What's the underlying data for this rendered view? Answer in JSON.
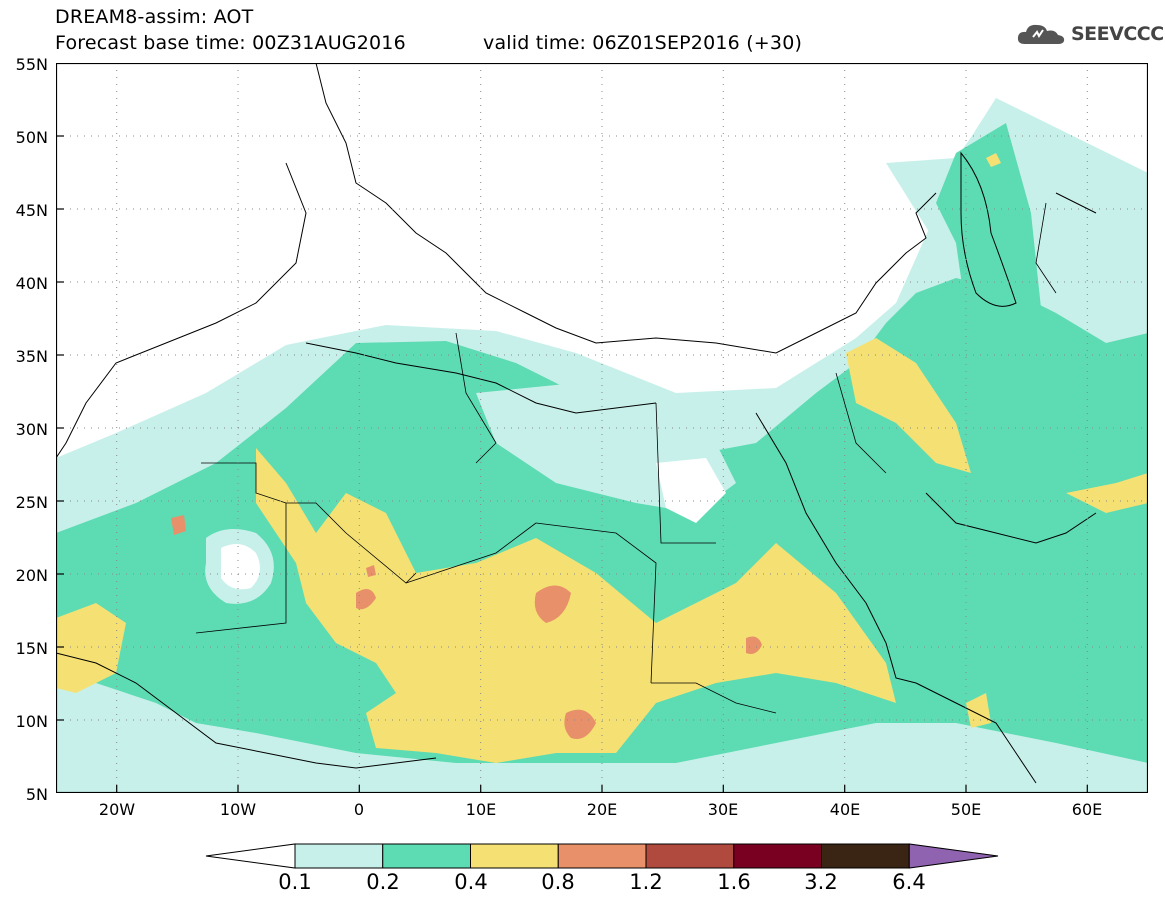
{
  "header": {
    "line1": "DREAM8-assim: AOT",
    "line2": "Forecast base time: 00Z31AUG2016",
    "line2b": "valid time: 06Z01SEP2016 (+30)"
  },
  "logo": {
    "text": "SEEVCCC",
    "icon": "cloud-logo-icon"
  },
  "map": {
    "lat_labels": [
      "55N",
      "50N",
      "45N",
      "40N",
      "35N",
      "30N",
      "25N",
      "20N",
      "15N",
      "10N",
      "5N"
    ],
    "lon_labels": [
      "20W",
      "10W",
      "0",
      "10E",
      "20E",
      "30E",
      "40E",
      "50E",
      "60E"
    ],
    "lat_range": [
      5,
      55
    ],
    "lon_range": [
      -25,
      65
    ]
  },
  "colorbar": {
    "labels": [
      "0.1",
      "0.2",
      "0.4",
      "0.8",
      "1.2",
      "1.6",
      "3.2",
      "6.4"
    ],
    "colors": [
      "#ffffff",
      "#c8f0ea",
      "#5ddbb3",
      "#f5e173",
      "#e8906a",
      "#b04a3e",
      "#7a0022",
      "#3a2414",
      "#8f63b0"
    ]
  }
}
